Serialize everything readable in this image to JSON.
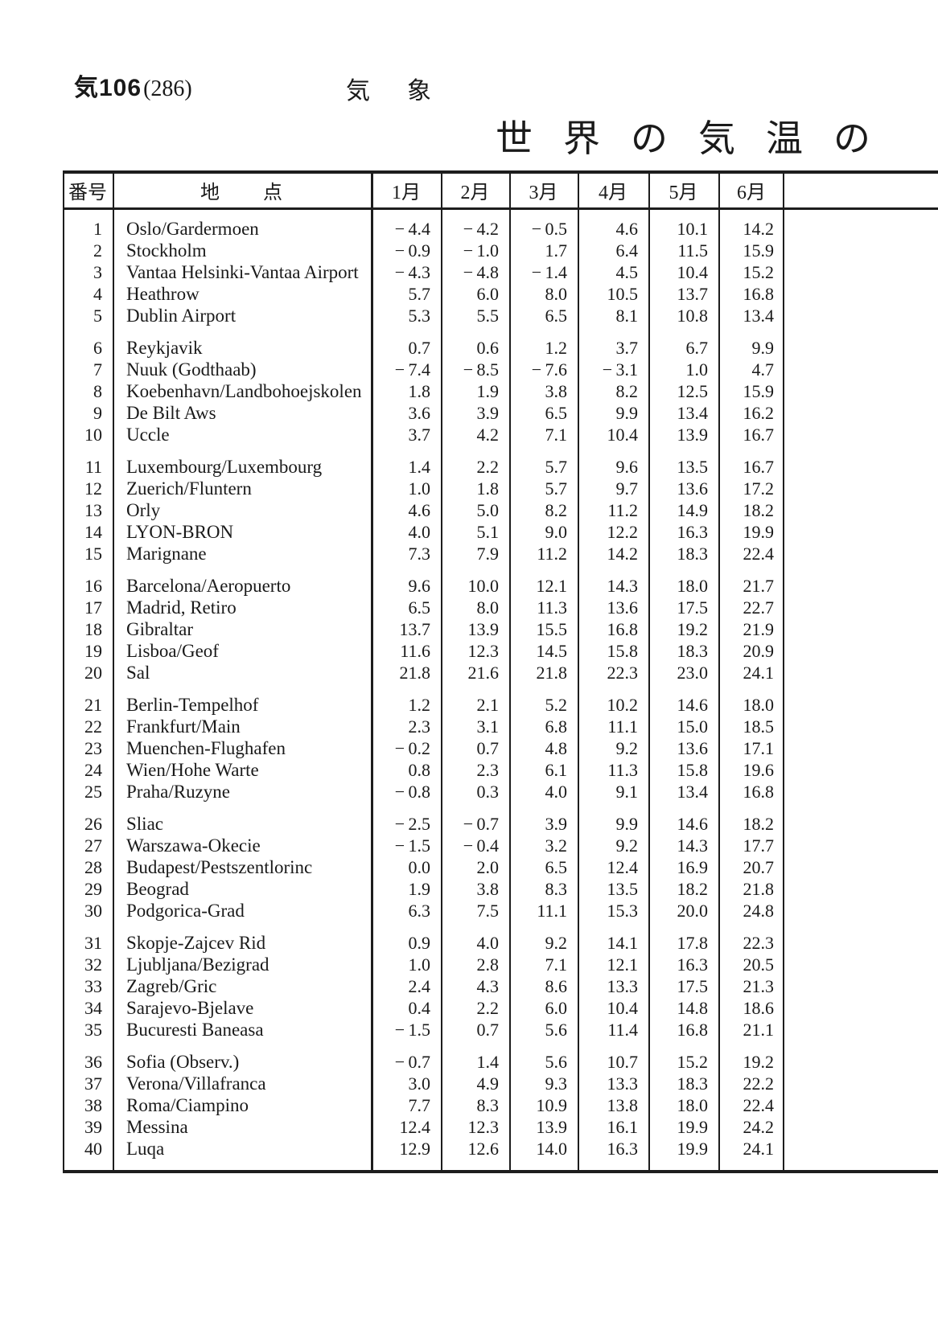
{
  "page": {
    "code": "気106",
    "page_number": "(286)",
    "section": "気　象",
    "title": "世界の気温の"
  },
  "table": {
    "headers": {
      "no": "番号",
      "location": "地　　点",
      "months": [
        "1月",
        "2月",
        "3月",
        "4月",
        "5月",
        "6月"
      ]
    },
    "rows": [
      {
        "no": 1,
        "location": "Oslo/Gardermoen",
        "values": [
          "-4.4",
          "-4.2",
          "-0.5",
          "4.6",
          "10.1",
          "14.2"
        ]
      },
      {
        "no": 2,
        "location": "Stockholm",
        "values": [
          "-0.9",
          "-1.0",
          "1.7",
          "6.4",
          "11.5",
          "15.9"
        ]
      },
      {
        "no": 3,
        "location": "Vantaa Helsinki-Vantaa Airport",
        "values": [
          "-4.3",
          "-4.8",
          "-1.4",
          "4.5",
          "10.4",
          "15.2"
        ]
      },
      {
        "no": 4,
        "location": "Heathrow",
        "values": [
          "5.7",
          "6.0",
          "8.0",
          "10.5",
          "13.7",
          "16.8"
        ]
      },
      {
        "no": 5,
        "location": "Dublin Airport",
        "values": [
          "5.3",
          "5.5",
          "6.5",
          "8.1",
          "10.8",
          "13.4"
        ]
      },
      {
        "no": 6,
        "location": "Reykjavik",
        "values": [
          "0.7",
          "0.6",
          "1.2",
          "3.7",
          "6.7",
          "9.9"
        ]
      },
      {
        "no": 7,
        "location": "Nuuk (Godthaab)",
        "values": [
          "-7.4",
          "-8.5",
          "-7.6",
          "-3.1",
          "1.0",
          "4.7"
        ]
      },
      {
        "no": 8,
        "location": "Koebenhavn/Landbohoejskolen",
        "values": [
          "1.8",
          "1.9",
          "3.8",
          "8.2",
          "12.5",
          "15.9"
        ]
      },
      {
        "no": 9,
        "location": "De Bilt Aws",
        "values": [
          "3.6",
          "3.9",
          "6.5",
          "9.9",
          "13.4",
          "16.2"
        ]
      },
      {
        "no": 10,
        "location": "Uccle",
        "values": [
          "3.7",
          "4.2",
          "7.1",
          "10.4",
          "13.9",
          "16.7"
        ]
      },
      {
        "no": 11,
        "location": "Luxembourg/Luxembourg",
        "values": [
          "1.4",
          "2.2",
          "5.7",
          "9.6",
          "13.5",
          "16.7"
        ]
      },
      {
        "no": 12,
        "location": "Zuerich/Fluntern",
        "values": [
          "1.0",
          "1.8",
          "5.7",
          "9.7",
          "13.6",
          "17.2"
        ]
      },
      {
        "no": 13,
        "location": "Orly",
        "values": [
          "4.6",
          "5.0",
          "8.2",
          "11.2",
          "14.9",
          "18.2"
        ]
      },
      {
        "no": 14,
        "location": "LYON-BRON",
        "values": [
          "4.0",
          "5.1",
          "9.0",
          "12.2",
          "16.3",
          "19.9"
        ]
      },
      {
        "no": 15,
        "location": "Marignane",
        "values": [
          "7.3",
          "7.9",
          "11.2",
          "14.2",
          "18.3",
          "22.4"
        ]
      },
      {
        "no": 16,
        "location": "Barcelona/Aeropuerto",
        "values": [
          "9.6",
          "10.0",
          "12.1",
          "14.3",
          "18.0",
          "21.7"
        ]
      },
      {
        "no": 17,
        "location": "Madrid, Retiro",
        "values": [
          "6.5",
          "8.0",
          "11.3",
          "13.6",
          "17.5",
          "22.7"
        ]
      },
      {
        "no": 18,
        "location": "Gibraltar",
        "values": [
          "13.7",
          "13.9",
          "15.5",
          "16.8",
          "19.2",
          "21.9"
        ]
      },
      {
        "no": 19,
        "location": "Lisboa/Geof",
        "values": [
          "11.6",
          "12.3",
          "14.5",
          "15.8",
          "18.3",
          "20.9"
        ]
      },
      {
        "no": 20,
        "location": "Sal",
        "values": [
          "21.8",
          "21.6",
          "21.8",
          "22.3",
          "23.0",
          "24.1"
        ]
      },
      {
        "no": 21,
        "location": "Berlin-Tempelhof",
        "values": [
          "1.2",
          "2.1",
          "5.2",
          "10.2",
          "14.6",
          "18.0"
        ]
      },
      {
        "no": 22,
        "location": "Frankfurt/Main",
        "values": [
          "2.3",
          "3.1",
          "6.8",
          "11.1",
          "15.0",
          "18.5"
        ]
      },
      {
        "no": 23,
        "location": "Muenchen-Flughafen",
        "values": [
          "-0.2",
          "0.7",
          "4.8",
          "9.2",
          "13.6",
          "17.1"
        ]
      },
      {
        "no": 24,
        "location": "Wien/Hohe Warte",
        "values": [
          "0.8",
          "2.3",
          "6.1",
          "11.3",
          "15.8",
          "19.6"
        ]
      },
      {
        "no": 25,
        "location": "Praha/Ruzyne",
        "values": [
          "-0.8",
          "0.3",
          "4.0",
          "9.1",
          "13.4",
          "16.8"
        ]
      },
      {
        "no": 26,
        "location": "Sliac",
        "values": [
          "-2.5",
          "-0.7",
          "3.9",
          "9.9",
          "14.6",
          "18.2"
        ]
      },
      {
        "no": 27,
        "location": "Warszawa-Okecie",
        "values": [
          "-1.5",
          "-0.4",
          "3.2",
          "9.2",
          "14.3",
          "17.7"
        ]
      },
      {
        "no": 28,
        "location": "Budapest/Pestszentlorinc",
        "values": [
          "0.0",
          "2.0",
          "6.5",
          "12.4",
          "16.9",
          "20.7"
        ]
      },
      {
        "no": 29,
        "location": "Beograd",
        "values": [
          "1.9",
          "3.8",
          "8.3",
          "13.5",
          "18.2",
          "21.8"
        ]
      },
      {
        "no": 30,
        "location": "Podgorica-Grad",
        "values": [
          "6.3",
          "7.5",
          "11.1",
          "15.3",
          "20.0",
          "24.8"
        ]
      },
      {
        "no": 31,
        "location": "Skopje-Zajcev Rid",
        "values": [
          "0.9",
          "4.0",
          "9.2",
          "14.1",
          "17.8",
          "22.3"
        ]
      },
      {
        "no": 32,
        "location": "Ljubljana/Bezigrad",
        "values": [
          "1.0",
          "2.8",
          "7.1",
          "12.1",
          "16.3",
          "20.5"
        ]
      },
      {
        "no": 33,
        "location": "Zagreb/Gric",
        "values": [
          "2.4",
          "4.3",
          "8.6",
          "13.3",
          "17.5",
          "21.3"
        ]
      },
      {
        "no": 34,
        "location": "Sarajevo-Bjelave",
        "values": [
          "0.4",
          "2.2",
          "6.0",
          "10.4",
          "14.8",
          "18.6"
        ]
      },
      {
        "no": 35,
        "location": "Bucuresti Baneasa",
        "values": [
          "-1.5",
          "0.7",
          "5.6",
          "11.4",
          "16.8",
          "21.1"
        ]
      },
      {
        "no": 36,
        "location": "Sofia (Observ.)",
        "values": [
          "-0.7",
          "1.4",
          "5.6",
          "10.7",
          "15.2",
          "19.2"
        ]
      },
      {
        "no": 37,
        "location": "Verona/Villafranca",
        "values": [
          "3.0",
          "4.9",
          "9.3",
          "13.3",
          "18.3",
          "22.2"
        ]
      },
      {
        "no": 38,
        "location": "Roma/Ciampino",
        "values": [
          "7.7",
          "8.3",
          "10.9",
          "13.8",
          "18.0",
          "22.4"
        ]
      },
      {
        "no": 39,
        "location": "Messina",
        "values": [
          "12.4",
          "12.3",
          "13.9",
          "16.1",
          "19.9",
          "24.2"
        ]
      },
      {
        "no": 40,
        "location": "Luqa",
        "values": [
          "12.9",
          "12.6",
          "14.0",
          "16.3",
          "19.9",
          "24.1"
        ]
      }
    ]
  }
}
